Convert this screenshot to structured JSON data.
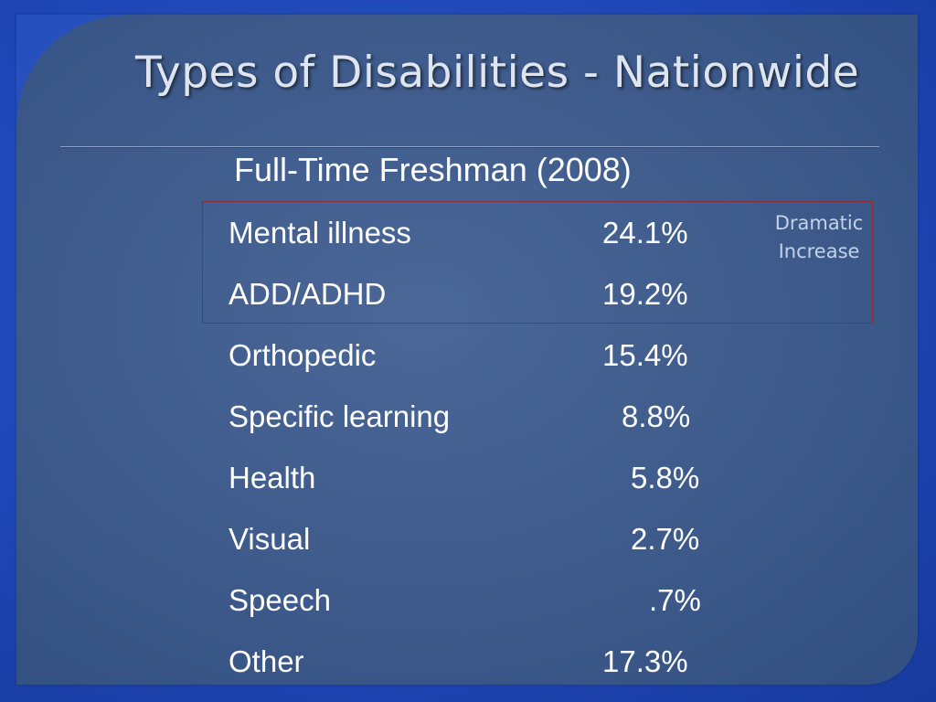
{
  "slide": {
    "title": "Types of Disabilities - Nationwide",
    "subtitle": "Full-Time Freshman (2008)",
    "callout": {
      "line1": "Dramatic",
      "line2": "Increase"
    },
    "rows": [
      {
        "label": "Mental illness",
        "value": "24.1%"
      },
      {
        "label": "ADD/ADHD",
        "value": "19.2%"
      },
      {
        "label": "Orthopedic",
        "value": "15.4%"
      },
      {
        "label": "Specific learning",
        "value": "8.8%"
      },
      {
        "label": "Health",
        "value": "5.8%"
      },
      {
        "label": "Visual",
        "value": "2.7%"
      },
      {
        "label": "Speech",
        "value": ".7%"
      },
      {
        "label": "Other",
        "value": "17.3%"
      }
    ]
  }
}
